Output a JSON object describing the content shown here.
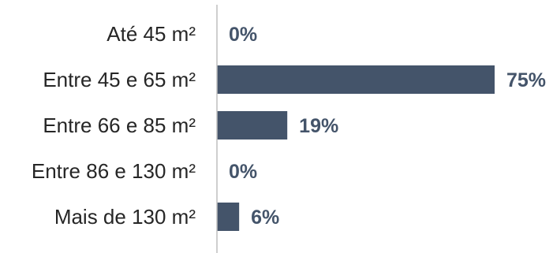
{
  "chart_data": {
    "type": "bar",
    "orientation": "horizontal",
    "title": "",
    "xlabel": "",
    "ylabel": "",
    "categories": [
      "Até 45 m²",
      "Entre 45 e 65 m²",
      "Entre 66 e 85 m²",
      "Entre 86 e 130 m²",
      "Mais de 130 m²"
    ],
    "values": [
      0,
      75,
      19,
      0,
      6
    ],
    "value_labels": [
      "0%",
      "75%",
      "19%",
      "0%",
      "6%"
    ],
    "unit": "%",
    "xlim": [
      0,
      75
    ],
    "grid": false,
    "legend": "none",
    "colors": {
      "bar": "#44546A",
      "value_label": "#44546A",
      "category_label": "#262626",
      "axis": "#BFBFBF"
    }
  }
}
